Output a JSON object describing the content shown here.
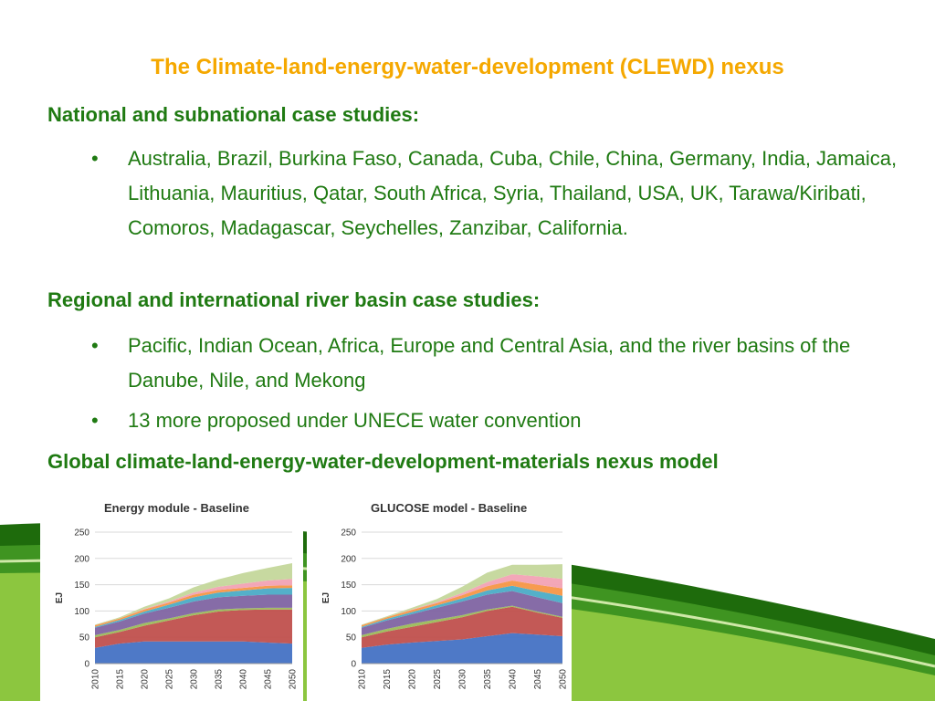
{
  "slide": {
    "title": "The Climate-land-energy-water-development (CLEWD) nexus",
    "sections": [
      {
        "heading": "National and subnational case studies:",
        "bullets": [
          "Australia, Brazil, Burkina Faso, Canada, Cuba, Chile, China, Germany, India, Jamaica, Lithuania, Mauritius, Qatar, South Africa, Syria, Thailand, USA, UK, Tarawa/Kiribati, Comoros, Madagascar, Seychelles, Zanzibar, California."
        ]
      },
      {
        "heading": "Regional and international river basin case studies:",
        "bullets": [
          "Pacific, Indian Ocean, Africa, Europe and Central Asia, and the river basins of the Danube, Nile, and Mekong",
          "13 more proposed under UNECE water convention"
        ]
      },
      {
        "heading": "Global climate-land-energy-water-development-materials nexus model",
        "bullets": []
      }
    ],
    "bullet_char": "•"
  },
  "colors": {
    "title": "#f5a800",
    "text": "#1f7a12",
    "swoosh_dark": "#1e6b0c",
    "swoosh_light": "#8cc63f"
  },
  "chart_data": [
    {
      "type": "area",
      "stacked": true,
      "title": "Energy module - Baseline",
      "ylabel": "EJ",
      "xlabel": "",
      "x": [
        2010,
        2015,
        2020,
        2025,
        2030,
        2035,
        2040,
        2045,
        2050
      ],
      "ylim": [
        0,
        250
      ],
      "yticks": [
        0,
        50,
        100,
        150,
        200,
        250
      ],
      "grid": true,
      "legend": "none",
      "series": [
        {
          "color": "#4472c4",
          "values": [
            30,
            38,
            42,
            42,
            42,
            42,
            42,
            40,
            38
          ]
        },
        {
          "color": "#c0504d",
          "values": [
            20,
            22,
            30,
            40,
            50,
            57,
            60,
            63,
            65
          ]
        },
        {
          "color": "#9bbb59",
          "values": [
            4,
            4,
            5,
            4,
            4,
            4,
            3,
            3,
            3
          ]
        },
        {
          "color": "#8064a2",
          "values": [
            14,
            16,
            18,
            20,
            22,
            23,
            24,
            25,
            25
          ]
        },
        {
          "color": "#4bacc6",
          "values": [
            2,
            3,
            4,
            6,
            8,
            9,
            10,
            12,
            13
          ]
        },
        {
          "color": "#f79646",
          "values": [
            3,
            3,
            4,
            4,
            5,
            5,
            5,
            5,
            5
          ]
        },
        {
          "color": "#f2a2b4",
          "values": [
            0,
            0,
            1,
            2,
            4,
            6,
            8,
            10,
            12
          ]
        },
        {
          "color": "#c4d79b",
          "values": [
            1,
            2,
            4,
            6,
            10,
            14,
            20,
            24,
            30
          ]
        }
      ]
    },
    {
      "type": "area",
      "stacked": true,
      "title": "GLUCOSE model - Baseline",
      "ylabel": "EJ",
      "xlabel": "",
      "x": [
        2010,
        2015,
        2020,
        2025,
        2030,
        2035,
        2040,
        2045,
        2050
      ],
      "ylim": [
        0,
        250
      ],
      "yticks": [
        0,
        50,
        100,
        150,
        200,
        250
      ],
      "grid": true,
      "legend": "none",
      "series": [
        {
          "color": "#4472c4",
          "values": [
            30,
            36,
            40,
            43,
            46,
            52,
            58,
            55,
            52
          ]
        },
        {
          "color": "#c0504d",
          "values": [
            20,
            25,
            30,
            36,
            42,
            48,
            50,
            42,
            35
          ]
        },
        {
          "color": "#9bbb59",
          "values": [
            4,
            5,
            6,
            5,
            4,
            3,
            2,
            2,
            2
          ]
        },
        {
          "color": "#8064a2",
          "values": [
            14,
            16,
            18,
            22,
            26,
            28,
            28,
            27,
            26
          ]
        },
        {
          "color": "#4bacc6",
          "values": [
            2,
            3,
            4,
            5,
            6,
            8,
            10,
            12,
            14
          ]
        },
        {
          "color": "#f79646",
          "values": [
            3,
            3,
            4,
            4,
            6,
            8,
            10,
            12,
            14
          ]
        },
        {
          "color": "#f2a2b4",
          "values": [
            0,
            0,
            1,
            2,
            4,
            8,
            12,
            16,
            18
          ]
        },
        {
          "color": "#c4d79b",
          "values": [
            1,
            2,
            3,
            6,
            12,
            18,
            18,
            22,
            28
          ]
        }
      ]
    }
  ]
}
